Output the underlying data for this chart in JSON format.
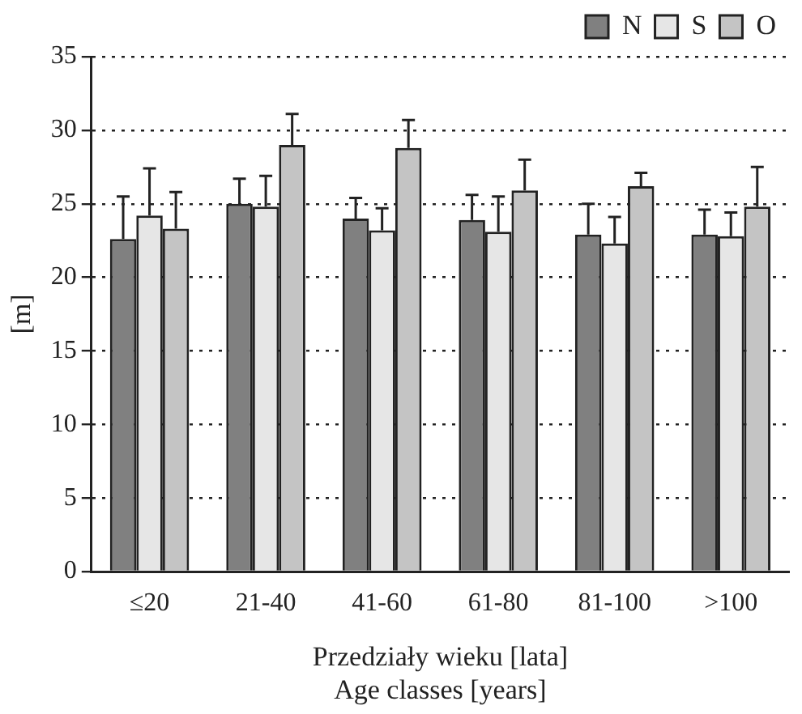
{
  "chart_data": {
    "type": "bar",
    "xlabel": "Przedziały wieku [lata]\nAge classes [years]",
    "ylabel": "[m]",
    "categories": [
      "≤20",
      "21-40",
      "41-60",
      "61-80",
      "81-100",
      ">100"
    ],
    "series": [
      {
        "name": "N",
        "color": "#808080",
        "values": [
          22.6,
          25.0,
          24.0,
          23.9,
          22.9,
          22.9
        ],
        "errors": [
          [
            22.6,
            25.5
          ],
          [
            25.0,
            26.7
          ],
          [
            24.0,
            25.4
          ],
          [
            23.9,
            25.6
          ],
          [
            22.9,
            25.0
          ],
          [
            22.9,
            24.6
          ]
        ]
      },
      {
        "name": "S",
        "color": "#e6e6e6",
        "values": [
          24.2,
          24.8,
          23.2,
          23.1,
          22.3,
          22.8
        ],
        "errors": [
          [
            24.2,
            27.4
          ],
          [
            24.8,
            26.9
          ],
          [
            23.2,
            24.7
          ],
          [
            23.1,
            25.5
          ],
          [
            22.3,
            24.1
          ],
          [
            22.8,
            24.4
          ]
        ]
      },
      {
        "name": "O",
        "color": "#c4c4c4",
        "values": [
          23.3,
          29.0,
          28.8,
          25.9,
          26.2,
          24.8
        ],
        "errors": [
          [
            23.3,
            25.8
          ],
          [
            29.0,
            31.1
          ],
          [
            28.8,
            30.7
          ],
          [
            25.9,
            28.0
          ],
          [
            26.2,
            27.1
          ],
          [
            24.8,
            27.5
          ]
        ]
      }
    ],
    "ylim": [
      0,
      35
    ],
    "yticks": [
      0,
      5,
      10,
      15,
      20,
      25,
      30,
      35
    ],
    "grid": "y",
    "legend": "top right"
  }
}
